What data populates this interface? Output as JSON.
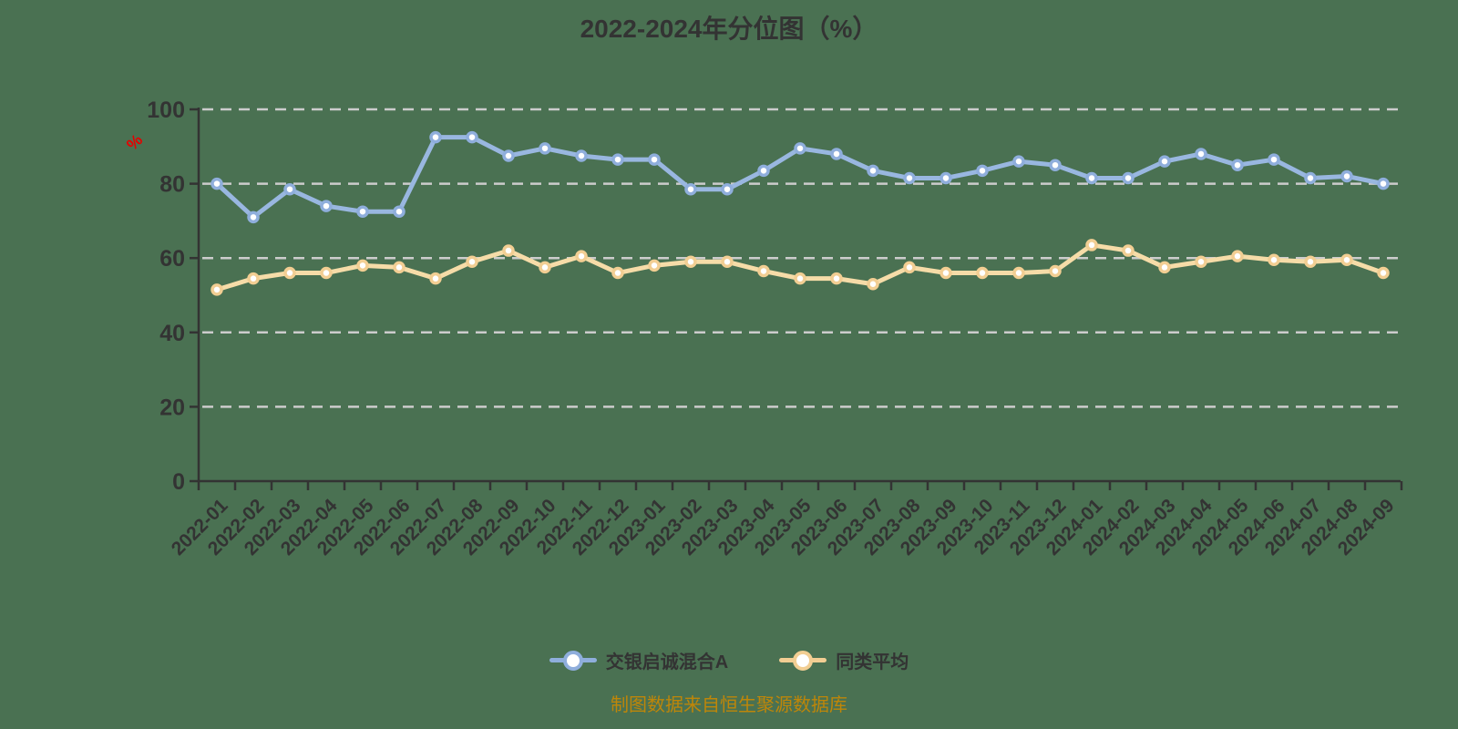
{
  "title": "2022-2024年分位图（%）",
  "y_axis_unit_label": "%",
  "source_note": "制图数据来自恒生聚源数据库",
  "colors": {
    "background": "#4A7152",
    "axis": "#333333",
    "grid": "#CCCCCC",
    "text": "#333333",
    "title": "#333333",
    "source_note": "#BE8609",
    "unit_label": "#E60000",
    "marker_fill": "#FFFFFF"
  },
  "chart_data": {
    "type": "line",
    "title": "2022-2024年分位图（%）",
    "xlabel": "",
    "ylabel": "%",
    "ylim": [
      0,
      100
    ],
    "yticks": [
      0,
      20,
      40,
      60,
      80,
      100
    ],
    "grid": true,
    "grid_style": "dashed",
    "legend_position": "bottom",
    "categories": [
      "2022-01",
      "2022-02",
      "2022-03",
      "2022-04",
      "2022-05",
      "2022-06",
      "2022-07",
      "2022-08",
      "2022-09",
      "2022-10",
      "2022-11",
      "2022-12",
      "2023-01",
      "2023-02",
      "2023-03",
      "2023-04",
      "2023-05",
      "2023-06",
      "2023-07",
      "2023-08",
      "2023-09",
      "2023-10",
      "2023-11",
      "2023-12",
      "2024-01",
      "2024-02",
      "2024-03",
      "2024-04",
      "2024-05",
      "2024-06",
      "2024-07",
      "2024-08",
      "2024-09"
    ],
    "series": [
      {
        "name": "交银启诚混合A",
        "color": "#99B7E0",
        "marker_color": "#8FAEDC",
        "values": [
          80,
          71,
          78.5,
          74,
          72.5,
          72.5,
          92.5,
          92.5,
          87.5,
          89.5,
          87.5,
          86.5,
          86.5,
          78.5,
          78.5,
          83.5,
          89.5,
          88,
          83.5,
          81.5,
          81.5,
          83.5,
          86,
          85,
          81.5,
          81.5,
          86,
          88,
          85,
          86.5,
          81.5,
          82,
          80
        ]
      },
      {
        "name": "同类平均",
        "color": "#F6DCA8",
        "marker_color": "#F2CE93",
        "values": [
          51.5,
          54.5,
          56,
          56,
          58,
          57.5,
          54.5,
          59,
          62,
          57.5,
          60.5,
          56,
          58,
          59,
          59,
          56.5,
          54.5,
          54.5,
          53,
          57.5,
          56,
          56,
          56,
          56.5,
          63.5,
          62,
          57.5,
          59,
          60.5,
          59.5,
          59,
          59.5,
          56
        ]
      }
    ]
  }
}
